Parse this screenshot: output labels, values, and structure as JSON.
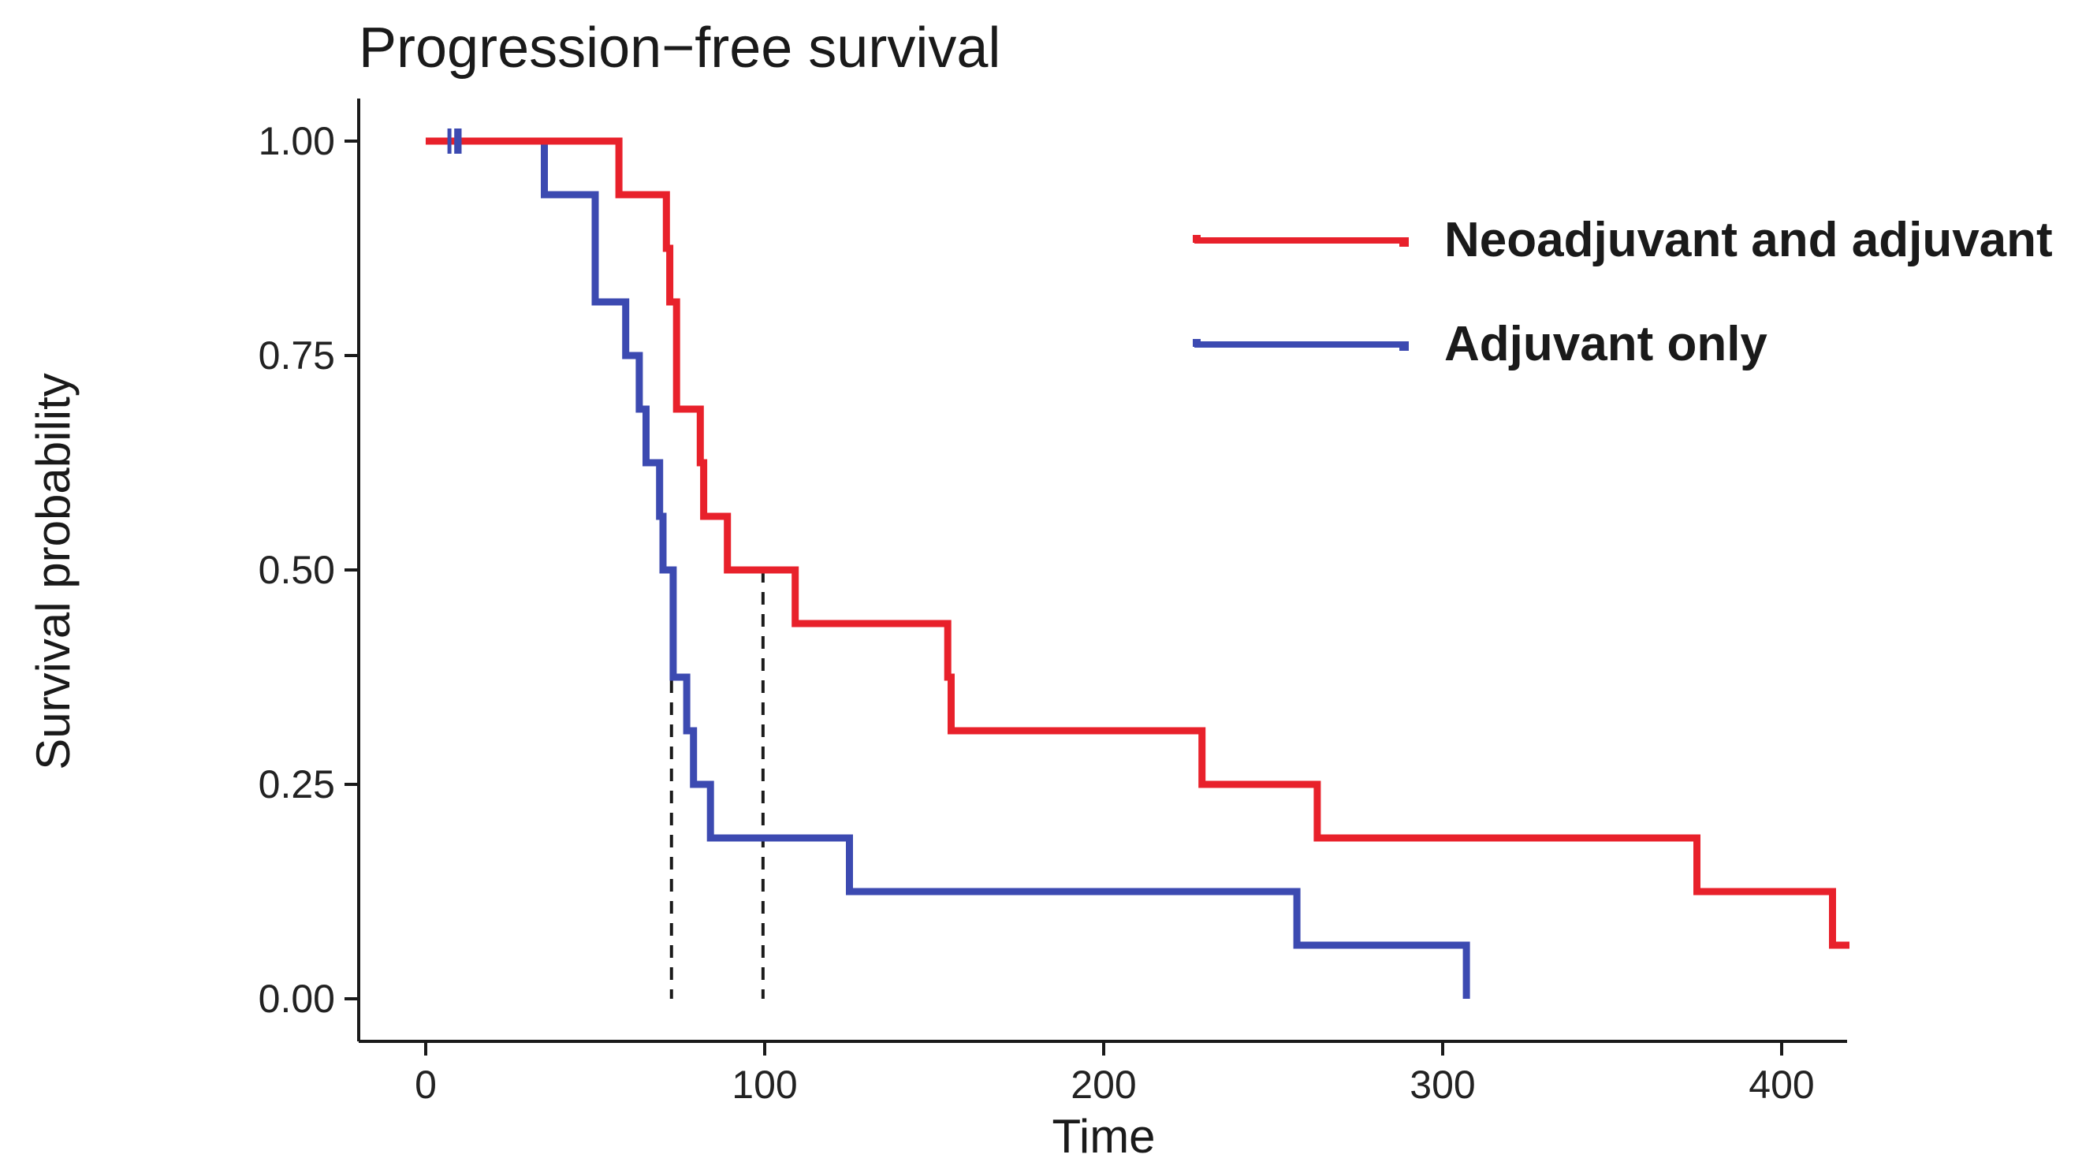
{
  "chart_data": {
    "type": "line",
    "subtype": "kaplan-meier step",
    "title": "Progression−free survival",
    "xlabel": "Time",
    "ylabel": "Survival probability",
    "xlim": [
      -20,
      420
    ],
    "ylim": [
      0,
      1.05
    ],
    "x_ticks": [
      0,
      100,
      200,
      300,
      400
    ],
    "x_tick_labels": [
      "0",
      "100",
      "200",
      "300",
      "400"
    ],
    "y_ticks": [
      0,
      0.25,
      0.5,
      0.75,
      1.0
    ],
    "y_tick_labels": [
      "0.00",
      "0.25",
      "0.50",
      "0.75",
      "1.00"
    ],
    "grid": false,
    "legend_position": "top-right",
    "series": [
      {
        "name": "Neoadjuvant and adjuvant",
        "color": "#e8212b",
        "steps": [
          [
            0,
            1.0
          ],
          [
            57,
            0.9375
          ],
          [
            71,
            0.875
          ],
          [
            72,
            0.8125
          ],
          [
            74,
            0.6875
          ],
          [
            81,
            0.625
          ],
          [
            82,
            0.5625
          ],
          [
            89,
            0.5
          ],
          [
            109,
            0.4375
          ],
          [
            154,
            0.375
          ],
          [
            155,
            0.3125
          ],
          [
            229,
            0.25
          ],
          [
            263,
            0.1875
          ],
          [
            375,
            0.125
          ],
          [
            415,
            0.0625
          ],
          [
            420,
            0.0625
          ]
        ]
      },
      {
        "name": "Adjuvant only",
        "color": "#3c4ab1",
        "steps": [
          [
            0,
            1.0
          ],
          [
            35,
            0.9375
          ],
          [
            50,
            0.8125
          ],
          [
            59,
            0.75
          ],
          [
            63,
            0.6875
          ],
          [
            65,
            0.625
          ],
          [
            69,
            0.5625
          ],
          [
            70,
            0.5
          ],
          [
            73,
            0.375
          ],
          [
            77,
            0.3125
          ],
          [
            79,
            0.25
          ],
          [
            84,
            0.1875
          ],
          [
            125,
            0.125
          ],
          [
            257,
            0.0625
          ],
          [
            307,
            0.0
          ],
          [
            307,
            0.0
          ]
        ],
        "censored": [
          7,
          9,
          10
        ]
      }
    ],
    "median_lines": [
      {
        "x": 72.5,
        "y": 0.5
      },
      {
        "x": 99.5,
        "y": 0.5
      }
    ]
  }
}
